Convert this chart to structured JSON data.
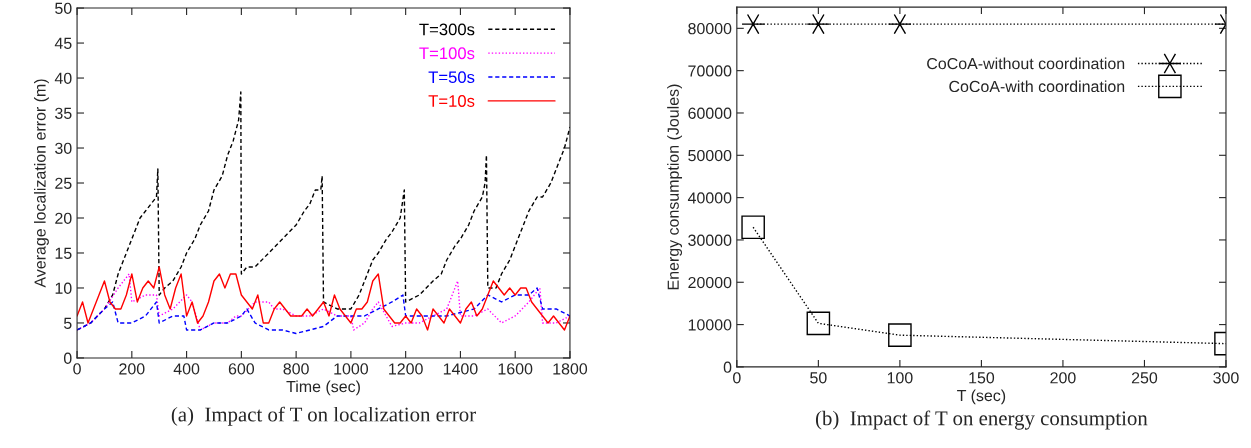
{
  "chart_data": [
    {
      "type": "line",
      "title": "(a)  Impact of T on localization error",
      "xlabel": "Time (sec)",
      "ylabel": "Average localization error (m)",
      "xlim": [
        0,
        1800
      ],
      "ylim": [
        0,
        50
      ],
      "xticks": [
        0,
        200,
        400,
        600,
        800,
        1000,
        1200,
        1400,
        1600,
        1800
      ],
      "yticks": [
        0,
        5,
        10,
        15,
        20,
        25,
        30,
        35,
        40,
        45,
        50
      ],
      "grid": false,
      "legend": "top right",
      "marker": "none",
      "series": [
        {
          "name": "T=300s",
          "color": "#000000",
          "line_style": "dashed",
          "x": [
            0,
            50,
            100,
            130,
            150,
            180,
            200,
            230,
            250,
            270,
            290,
            295,
            300,
            320,
            350,
            380,
            400,
            430,
            450,
            480,
            500,
            530,
            550,
            570,
            590,
            598,
            600,
            620,
            650,
            700,
            750,
            800,
            830,
            850,
            870,
            890,
            895,
            900,
            950,
            1000,
            1030,
            1050,
            1080,
            1100,
            1130,
            1150,
            1180,
            1195,
            1200,
            1250,
            1300,
            1330,
            1350,
            1380,
            1400,
            1430,
            1450,
            1480,
            1490,
            1495,
            1500,
            1530,
            1550,
            1580,
            1600,
            1630,
            1650,
            1680,
            1700,
            1730,
            1750,
            1780,
            1800
          ],
          "values": [
            4,
            5,
            7,
            9,
            12,
            15,
            17,
            20,
            21,
            22,
            23,
            27,
            9,
            10,
            11,
            13,
            15,
            17,
            19,
            21,
            24,
            26,
            29,
            31,
            34,
            38,
            12,
            13,
            13,
            15,
            17,
            19,
            21,
            22,
            24,
            24,
            26,
            8,
            7,
            7,
            9,
            11,
            14,
            15,
            17,
            18,
            20,
            24,
            8,
            9,
            11,
            12,
            14,
            16,
            17,
            19,
            21,
            23,
            25,
            29,
            10,
            10,
            12,
            14,
            16,
            19,
            21,
            23,
            23,
            25,
            27,
            30,
            33
          ]
        },
        {
          "name": "T=100s",
          "color": "#ff00ff",
          "line_style": "dotted",
          "x": [
            0,
            50,
            100,
            150,
            190,
            200,
            250,
            290,
            300,
            350,
            400,
            420,
            450,
            500,
            550,
            580,
            600,
            650,
            700,
            720,
            750,
            800,
            850,
            900,
            950,
            1000,
            1010,
            1050,
            1080,
            1100,
            1150,
            1200,
            1250,
            1300,
            1350,
            1390,
            1400,
            1450,
            1500,
            1550,
            1600,
            1650,
            1690,
            1700,
            1750,
            1800
          ],
          "values": [
            4,
            5,
            7,
            10,
            12,
            8,
            9,
            9,
            6,
            7,
            9,
            8,
            4,
            5,
            5,
            6,
            6,
            8,
            8,
            7,
            7,
            6,
            6,
            7,
            6,
            6,
            4,
            5,
            7,
            8,
            4.5,
            5,
            5,
            6,
            7,
            11,
            6,
            6,
            7,
            5,
            6,
            8,
            10,
            5,
            5,
            6
          ]
        },
        {
          "name": "T=50s",
          "color": "#0000ff",
          "line_style": "dashed",
          "x": [
            0,
            50,
            100,
            130,
            150,
            200,
            250,
            290,
            300,
            350,
            390,
            400,
            450,
            500,
            550,
            600,
            620,
            650,
            700,
            750,
            800,
            850,
            900,
            950,
            1000,
            1050,
            1100,
            1150,
            1190,
            1200,
            1250,
            1300,
            1350,
            1400,
            1450,
            1500,
            1550,
            1600,
            1650,
            1680,
            1700,
            1750,
            1800
          ],
          "values": [
            4,
            5,
            7,
            8,
            5,
            5,
            6,
            8,
            5,
            6,
            6,
            4,
            4,
            5,
            5,
            6,
            7,
            5,
            4,
            4,
            3.5,
            4,
            4.5,
            6,
            6,
            6,
            7,
            8,
            9,
            6,
            6,
            6,
            6,
            6.5,
            7,
            9,
            8,
            9,
            9,
            10,
            7,
            7,
            6
          ]
        },
        {
          "name": "T=10s",
          "color": "#ff0000",
          "line_style": "solid",
          "x": [
            0,
            20,
            40,
            60,
            80,
            100,
            120,
            140,
            160,
            180,
            200,
            220,
            240,
            260,
            280,
            300,
            320,
            340,
            360,
            380,
            400,
            420,
            440,
            460,
            480,
            500,
            520,
            540,
            560,
            580,
            600,
            620,
            640,
            660,
            680,
            700,
            720,
            740,
            760,
            780,
            800,
            820,
            840,
            860,
            880,
            900,
            920,
            940,
            960,
            980,
            1000,
            1020,
            1040,
            1060,
            1080,
            1100,
            1120,
            1140,
            1160,
            1180,
            1200,
            1220,
            1240,
            1260,
            1280,
            1300,
            1320,
            1340,
            1360,
            1380,
            1400,
            1420,
            1440,
            1460,
            1480,
            1500,
            1520,
            1540,
            1560,
            1580,
            1600,
            1620,
            1640,
            1660,
            1680,
            1700,
            1720,
            1740,
            1760,
            1780,
            1800
          ],
          "values": [
            6,
            8,
            5,
            7,
            9,
            11,
            8,
            7,
            7,
            9,
            12,
            8,
            10,
            11,
            10,
            13,
            9,
            7,
            10,
            12,
            6,
            8,
            5,
            6,
            8,
            11,
            12,
            10,
            12,
            12,
            9,
            8,
            7,
            9,
            5,
            5,
            7,
            8,
            7,
            6,
            6,
            6,
            7,
            6,
            7,
            8,
            6,
            9,
            7,
            6,
            5,
            7,
            7,
            8,
            11,
            12,
            7,
            6,
            5,
            5,
            6,
            5,
            7,
            6,
            4,
            7,
            6,
            5,
            7,
            6,
            5,
            7,
            8,
            6,
            7,
            9,
            11,
            10,
            9,
            10,
            9,
            10,
            10,
            8,
            7,
            6,
            5,
            6,
            5,
            4,
            6
          ]
        }
      ]
    },
    {
      "type": "line",
      "title": "(b)  Impact of T on energy consumption",
      "xlabel": "T (sec)",
      "ylabel": "Energy consumption (Joules)",
      "xlim": [
        0,
        300
      ],
      "ylim": [
        0,
        85000
      ],
      "xticks": [
        0,
        50,
        100,
        150,
        200,
        250,
        300
      ],
      "yticks": [
        0,
        10000,
        20000,
        30000,
        40000,
        50000,
        60000,
        70000,
        80000
      ],
      "grid": false,
      "legend": "top right",
      "series": [
        {
          "name": "CoCoA-without coordination",
          "color": "#000000",
          "line_style": "dotted",
          "marker": "cross",
          "x": [
            10,
            50,
            100,
            300
          ],
          "values": [
            81000,
            81000,
            81000,
            81000
          ]
        },
        {
          "name": "CoCoA-with coordination",
          "color": "#000000",
          "line_style": "dotted",
          "marker": "square",
          "x": [
            10,
            50,
            100,
            300
          ],
          "values": [
            33000,
            10300,
            7500,
            5500
          ]
        }
      ]
    }
  ]
}
